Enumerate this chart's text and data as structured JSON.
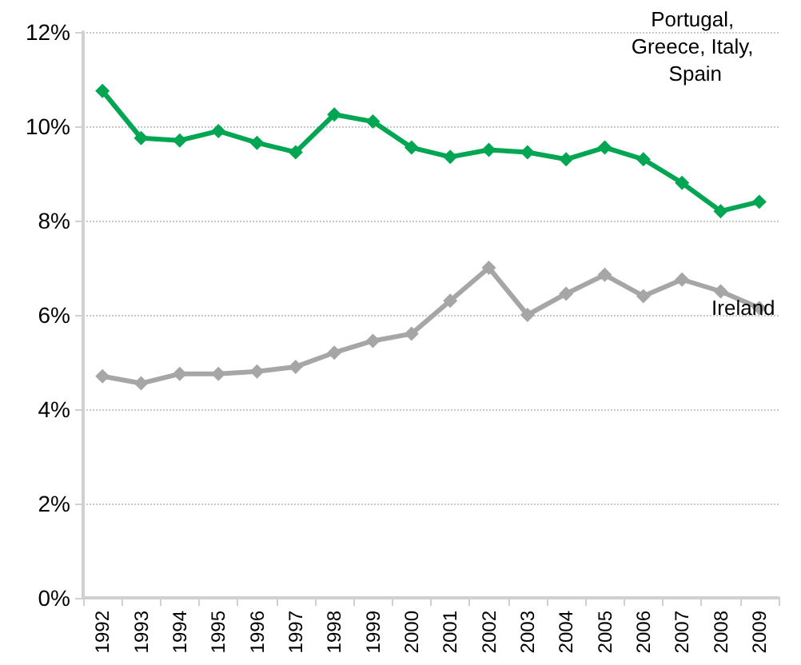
{
  "chart_data": {
    "type": "line",
    "categories": [
      "1992",
      "1993",
      "1994",
      "1995",
      "1996",
      "1997",
      "1998",
      "1999",
      "2000",
      "2001",
      "2002",
      "2003",
      "2004",
      "2005",
      "2006",
      "2007",
      "2008",
      "2009"
    ],
    "series": [
      {
        "name": "Portugal, Greece, Italy, Spain",
        "color": "#00a651",
        "values": [
          10.75,
          9.75,
          9.7,
          9.9,
          9.65,
          9.45,
          10.25,
          10.1,
          9.55,
          9.35,
          9.5,
          9.45,
          9.3,
          9.55,
          9.3,
          8.8,
          8.2,
          8.4
        ]
      },
      {
        "name": "Ireland",
        "color": "#a6a6a6",
        "values": [
          4.7,
          4.55,
          4.75,
          4.75,
          4.8,
          4.9,
          5.2,
          5.45,
          5.6,
          6.3,
          7.0,
          6.0,
          6.45,
          6.85,
          6.4,
          6.75,
          6.5,
          6.15
        ]
      }
    ],
    "ylim": [
      0,
      12
    ],
    "yticks": [
      {
        "value": 0,
        "label": "0%"
      },
      {
        "value": 2,
        "label": "2%"
      },
      {
        "value": 4,
        "label": "4%"
      },
      {
        "value": 6,
        "label": "6%"
      },
      {
        "value": 8,
        "label": "8%"
      },
      {
        "value": 10,
        "label": "10%"
      },
      {
        "value": 12,
        "label": "12%"
      }
    ],
    "grid": "y",
    "legend": false,
    "marker": "diamond",
    "line_style": "solid"
  }
}
